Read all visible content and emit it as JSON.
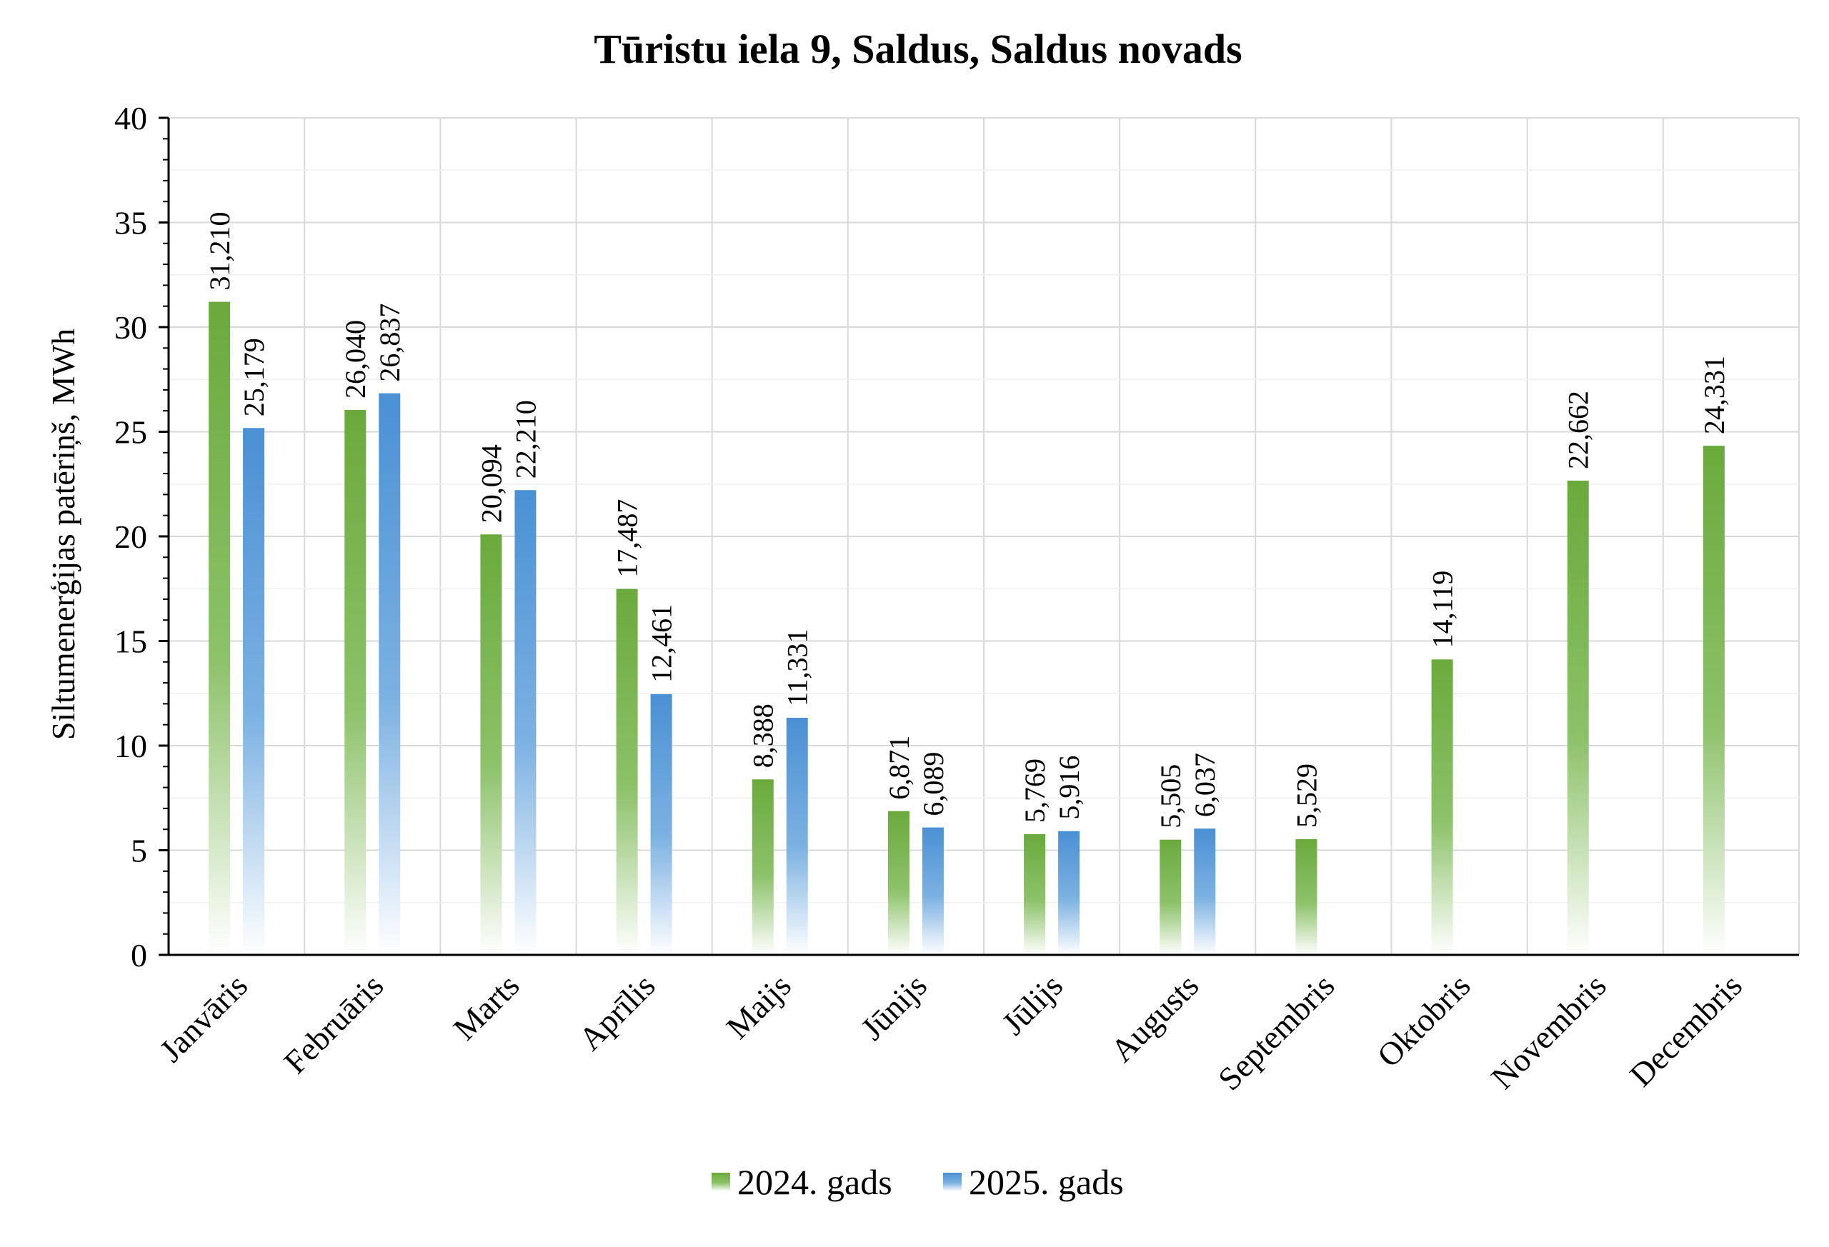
{
  "chart_data": {
    "type": "bar",
    "title": "Tūristu iela 9, Saldus, Saldus novads",
    "xlabel": "",
    "ylabel": "Siltumenerģijas patēriņš, MWh",
    "ylim": [
      0,
      40
    ],
    "yticks": [
      0,
      5,
      10,
      15,
      20,
      25,
      30,
      35,
      40
    ],
    "grid": true,
    "legend_position": "bottom",
    "categories": [
      "Janvāris",
      "Februāris",
      "Marts",
      "Aprīlis",
      "Maijs",
      "Jūnijs",
      "Jūlijs",
      "Augusts",
      "Septembris",
      "Oktobris",
      "Novembris",
      "Decembris"
    ],
    "series": [
      {
        "name": "2024. gads",
        "color": "#6aaa3c",
        "values": [
          31.21,
          26.04,
          20.094,
          17.487,
          8.388,
          6.871,
          5.769,
          5.505,
          5.529,
          14.119,
          22.662,
          24.331
        ],
        "labels": [
          "31,210",
          "26,040",
          "20,094",
          "17,487",
          "8,388",
          "6,871",
          "5,769",
          "5,505",
          "5,529",
          "14,119",
          "22,662",
          "24,331"
        ]
      },
      {
        "name": "2025. gads",
        "color": "#4a90d4",
        "values": [
          25.179,
          26.837,
          22.21,
          12.461,
          11.331,
          6.089,
          5.916,
          6.037,
          null,
          null,
          null,
          null
        ],
        "labels": [
          "25,179",
          "26,837",
          "22,210",
          "12,461",
          "11,331",
          "6,089",
          "5,916",
          "6,037",
          null,
          null,
          null,
          null
        ]
      }
    ]
  }
}
